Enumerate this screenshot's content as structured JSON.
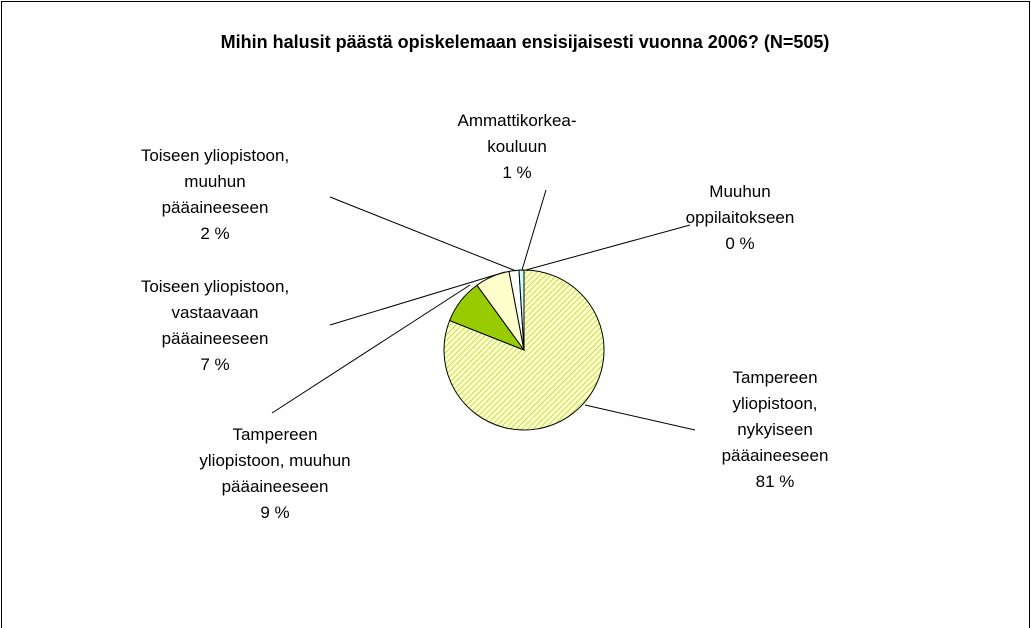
{
  "chart_data": {
    "type": "pie",
    "title": "Mihin halusit päästä opiskelemaan ensisijaisesti vuonna 2006? (N=505)",
    "categories": [
      "Tampereen\nyliopistoon,\nnykyiseen\npääaineeseen",
      "Tampereen\nyliopistoon, muuhun\npääaineeseen",
      "Toiseen yliopistoon,\nvastaavaan\npääaineeseen",
      "Toiseen yliopistoon,\nmuuhun\npääaineeseen",
      "Ammattikorkea-\nkouluun",
      "Muuhun\noppilaitokseen"
    ],
    "values": [
      81,
      9,
      7,
      2,
      1,
      0
    ],
    "value_labels": [
      "81 %",
      "9 %",
      "7 %",
      "2 %",
      "1 %",
      "0 %"
    ],
    "colors": [
      "hatch",
      "#99cc00",
      "#ffffcc",
      "#ffffff",
      "#ccffff",
      "#003366"
    ]
  }
}
